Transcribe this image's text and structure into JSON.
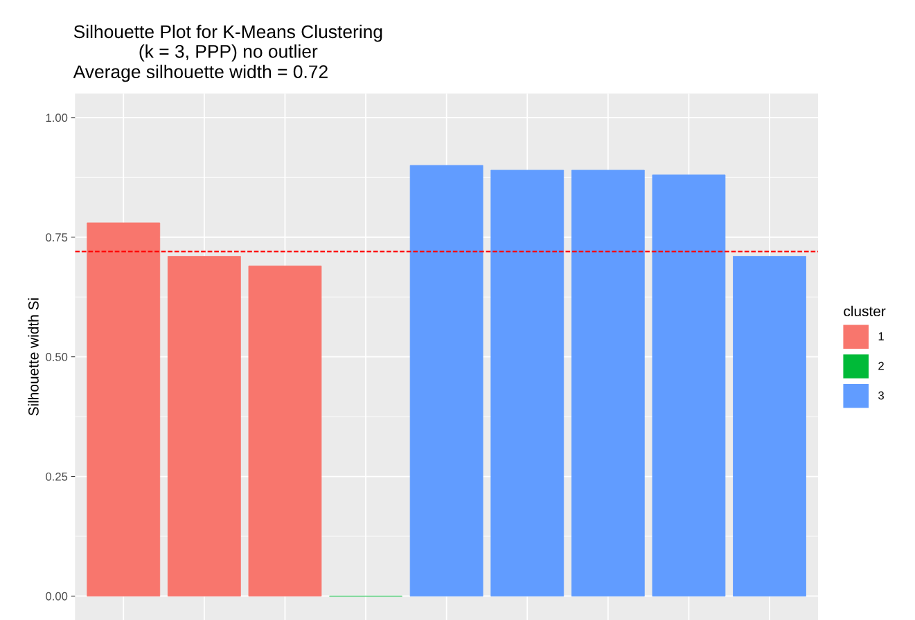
{
  "chart_data": {
    "type": "bar",
    "title": "Silhouette Plot for K-Means Clustering\n(k = 3, PPP) no outlier",
    "subtitle": "Average silhouette width = 0.72",
    "ylabel": "Silhouette width Si",
    "categories": [
      null,
      null,
      null,
      null,
      null,
      null,
      null,
      null,
      null
    ],
    "series": [
      {
        "name": "1",
        "color": "#f8766d",
        "values": [
          0.78,
          0.71,
          0.69,
          null,
          null,
          null,
          null,
          null,
          null
        ]
      },
      {
        "name": "2",
        "color": "#00ba38",
        "values": [
          null,
          null,
          null,
          0.0,
          null,
          null,
          null,
          null,
          null
        ]
      },
      {
        "name": "3",
        "color": "#619cff",
        "values": [
          null,
          null,
          null,
          null,
          0.9,
          0.89,
          0.89,
          0.88,
          0.71
        ]
      }
    ],
    "legend_title": "cluster",
    "legend": "right",
    "ylim": [
      -0.05,
      1.05
    ],
    "yticks": [
      {
        "value": 0,
        "label": "0.00"
      },
      {
        "value": 0.25,
        "label": "0.25"
      },
      {
        "value": 0.5,
        "label": "0.50"
      },
      {
        "value": 0.75,
        "label": "0.75"
      },
      {
        "value": 1,
        "label": "1.00"
      }
    ],
    "grid": true,
    "tick_labels": "y",
    "ref_lines": [
      {
        "axis": "y",
        "value": 0.72,
        "color": "#ff0000",
        "line_style": "dashed"
      }
    ]
  }
}
